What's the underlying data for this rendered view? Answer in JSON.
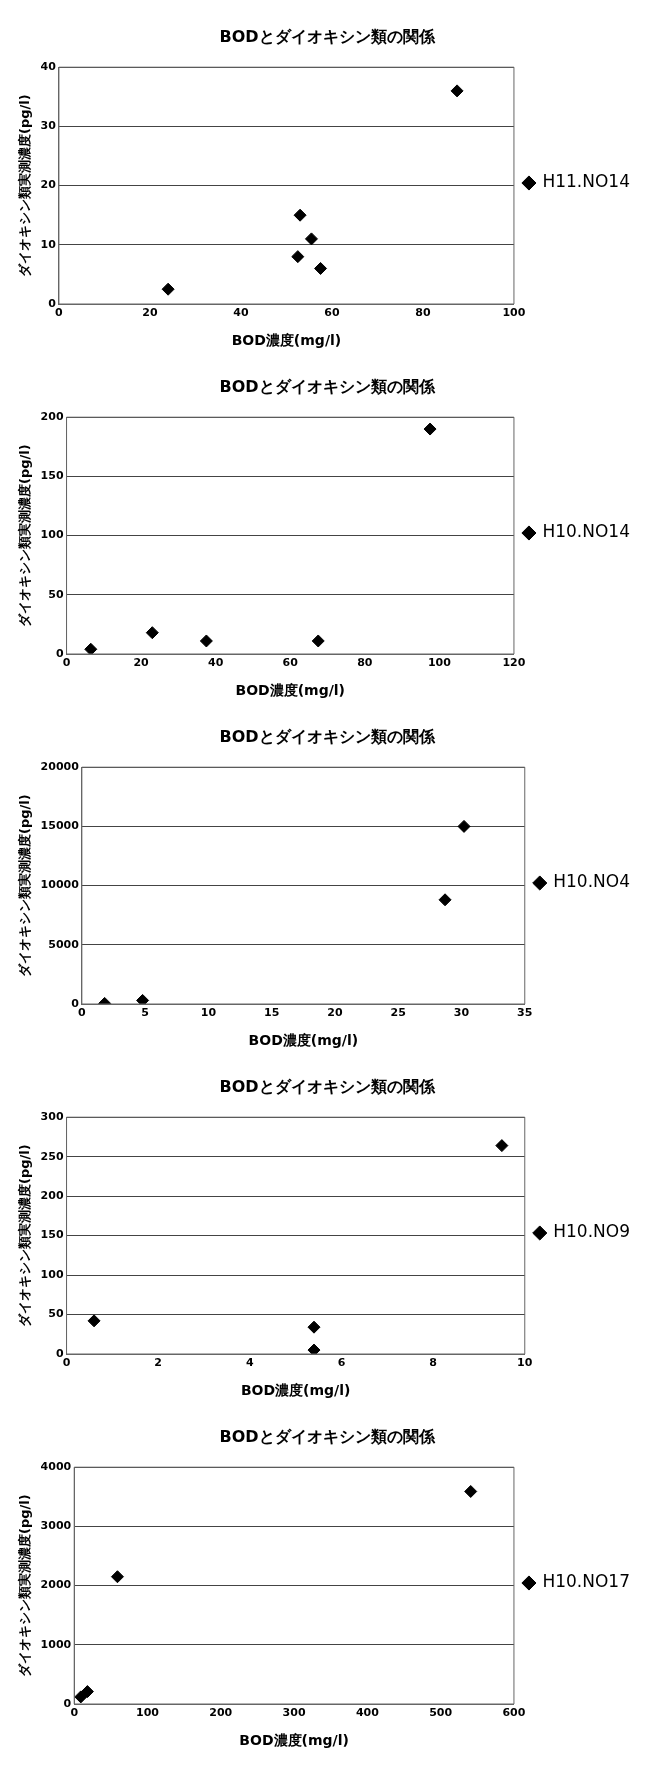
{
  "chart_data": [
    {
      "type": "scatter",
      "title": "BODとダイオキシン類の関係",
      "xlabel": "BOD濃度(mg/l)",
      "ylabel": "ダイオキシン類実測濃度(pg/l)",
      "xlim": [
        0,
        100
      ],
      "xticks": [
        0,
        20,
        40,
        60,
        80,
        100
      ],
      "ylim": [
        0,
        40
      ],
      "yticks": [
        0,
        10,
        20,
        30,
        40
      ],
      "grid": "y",
      "legend": "right",
      "marker": "diamond",
      "series": [
        {
          "name": "H11.NO14",
          "color": "#000000",
          "x": [
            24,
            53,
            52.5,
            55.5,
            57.5,
            87.5
          ],
          "values": [
            2.5,
            15,
            8,
            11,
            6,
            36
          ]
        }
      ]
    },
    {
      "type": "scatter",
      "title": "BODとダイオキシン類の関係",
      "xlabel": "BOD濃度(mg/l)",
      "ylabel": "ダイオキシン類実測濃度(pg/l)",
      "xlim": [
        0,
        120
      ],
      "xticks": [
        0,
        20,
        40,
        60,
        80,
        100,
        120
      ],
      "ylim": [
        0,
        200
      ],
      "yticks": [
        0,
        50,
        100,
        150,
        200
      ],
      "grid": "y",
      "legend": "right",
      "marker": "diamond",
      "series": [
        {
          "name": "H10.NO14",
          "color": "#000000",
          "x": [
            6.5,
            23,
            37.5,
            67.5,
            97.5
          ],
          "values": [
            4,
            18,
            11,
            11,
            190
          ]
        }
      ]
    },
    {
      "type": "scatter",
      "title": "BODとダイオキシン類の関係",
      "xlabel": "BOD濃度(mg/l)",
      "ylabel": "ダイオキシン類実測濃度(pg/l)",
      "xlim": [
        0,
        35
      ],
      "xticks": [
        0,
        5,
        10,
        15,
        20,
        25,
        30,
        35
      ],
      "ylim": [
        0,
        20000
      ],
      "yticks": [
        0,
        5000,
        10000,
        15000,
        20000
      ],
      "grid": "y",
      "legend": "right",
      "marker": "diamond",
      "series": [
        {
          "name": "H10.NO4",
          "color": "#000000",
          "x": [
            1.8,
            4.8,
            28.7,
            30.2
          ],
          "values": [
            50,
            300,
            8800,
            15000
          ]
        }
      ]
    },
    {
      "type": "scatter",
      "title": "BODとダイオキシン類の関係",
      "xlabel": "BOD濃度(mg/l)",
      "ylabel": "ダイオキシン類実測濃度(pg/l)",
      "xlim": [
        0,
        10
      ],
      "xticks": [
        0,
        2,
        4,
        6,
        8,
        10
      ],
      "ylim": [
        0,
        300
      ],
      "yticks": [
        0,
        50,
        100,
        150,
        200,
        250,
        300
      ],
      "grid": "y",
      "legend": "right",
      "marker": "diamond",
      "series": [
        {
          "name": "H10.NO9",
          "color": "#000000",
          "x": [
            0.6,
            5.4,
            5.4,
            9.5
          ],
          "values": [
            42,
            34,
            5,
            264
          ]
        }
      ]
    },
    {
      "type": "scatter",
      "title": "BODとダイオキシン類の関係",
      "xlabel": "BOD濃度(mg/l)",
      "ylabel": "ダイオキシン類実測濃度(pg/l)",
      "xlim": [
        0,
        600
      ],
      "xticks": [
        0,
        100,
        200,
        300,
        400,
        500,
        600
      ],
      "ylim": [
        0,
        4000
      ],
      "yticks": [
        0,
        1000,
        2000,
        3000,
        4000
      ],
      "grid": "y",
      "legend": "right",
      "marker": "diamond",
      "series": [
        {
          "name": "H10.NO17",
          "color": "#000000",
          "x": [
            9,
            18,
            59,
            541
          ],
          "values": [
            120,
            210,
            2150,
            3590
          ]
        }
      ]
    }
  ]
}
